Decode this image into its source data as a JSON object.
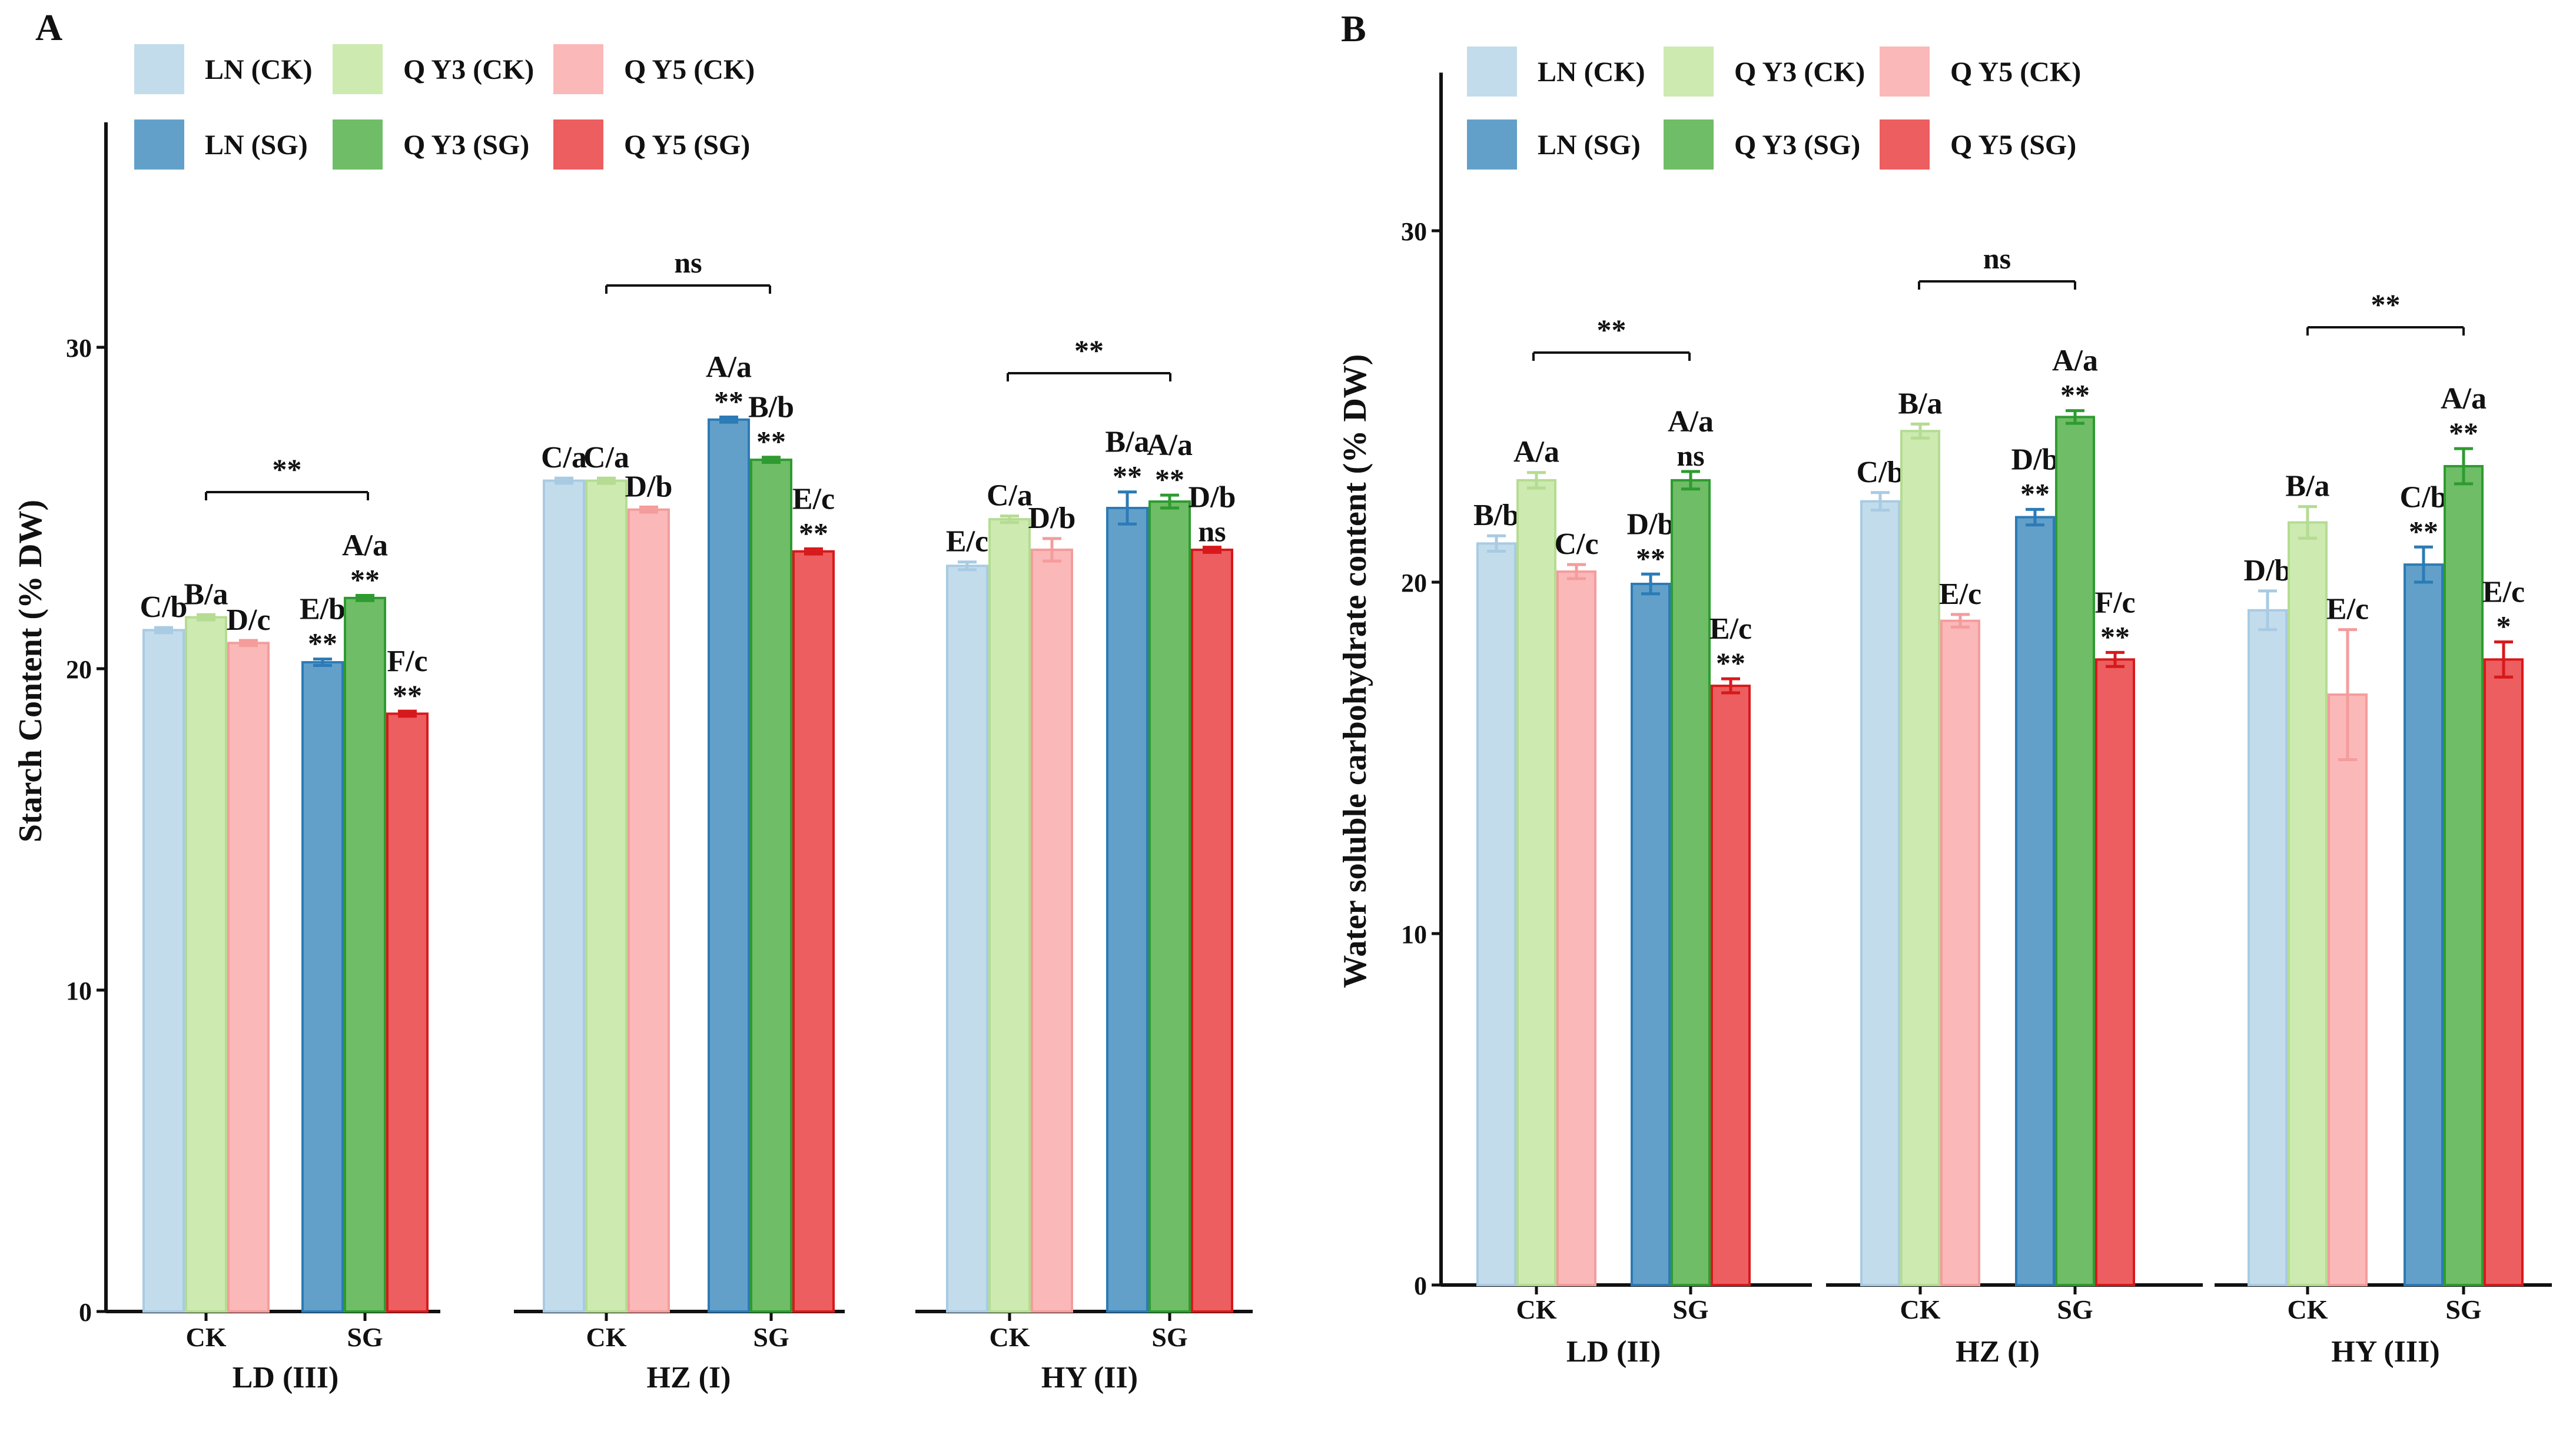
{
  "colors": {
    "LN_CK": "#c3dcec",
    "QY3_CK": "#cdeab1",
    "QY5_CK": "#fbb8b8",
    "LN_SG": "#62a0ca",
    "QY3_SG": "#6fbd66",
    "QY5_SG": "#ec5e5f",
    "LN_CK_edge": "#a8cbe3",
    "QY3_CK_edge": "#b5dc92",
    "QY5_CK_edge": "#f49c9c",
    "LN_SG_edge": "#2c7bb6",
    "QY3_SG_edge": "#2e9b30",
    "QY5_SG_edge": "#d7191c"
  },
  "chart_data": [
    {
      "type": "bar",
      "panel_label": "A",
      "ylabel": "Starch Content (% DW)",
      "ylim": [
        0,
        37
      ],
      "yticks": [
        0,
        10,
        20,
        30
      ],
      "legend": [
        "LN (CK)",
        "Q Y3 (CK)",
        "Q Y5 (CK)",
        "LN (SG)",
        "Q Y3 (SG)",
        "Q Y5 (SG)"
      ],
      "legend_position": "top-left",
      "series_keys": [
        "LN_CK",
        "QY3_CK",
        "QY5_CK",
        "LN_SG",
        "QY3_SG",
        "QY5_SG"
      ],
      "groups": [
        {
          "name": "LD (III)",
          "categories": [
            "CK",
            "SG"
          ],
          "bracket": "**",
          "values": [
            21.2,
            21.6,
            20.8,
            20.2,
            22.2,
            18.6
          ],
          "errors": [
            0.08,
            0.08,
            0.08,
            0.1,
            0.08,
            0.08
          ],
          "letters": [
            "C/b",
            "B/a",
            "D/c",
            "E/b",
            "A/a",
            "F/c"
          ],
          "sig": [
            "",
            "",
            "",
            "**",
            "**",
            "**"
          ]
        },
        {
          "name": "HZ (I)",
          "categories": [
            "CK",
            "SG"
          ],
          "bracket": "ns",
          "values": [
            25.85,
            25.85,
            24.95,
            27.75,
            26.5,
            23.65
          ],
          "errors": [
            0.08,
            0.08,
            0.08,
            0.08,
            0.08,
            0.08
          ],
          "letters": [
            "C/a",
            "C/a",
            "D/b",
            "A/a",
            "B/b",
            "E/c"
          ],
          "sig": [
            "",
            "",
            "",
            "**",
            "**",
            "**"
          ]
        },
        {
          "name": "HY (II)",
          "categories": [
            "CK",
            "SG"
          ],
          "bracket": "**",
          "values": [
            23.2,
            24.65,
            23.7,
            25.0,
            25.2,
            23.7
          ],
          "errors": [
            0.12,
            0.1,
            0.35,
            0.5,
            0.2,
            0.08
          ],
          "letters": [
            "E/c",
            "C/a",
            "D/b",
            "B/a",
            "A/a",
            "D/b"
          ],
          "sig": [
            "",
            "",
            "",
            "**",
            "**",
            "ns"
          ]
        }
      ]
    },
    {
      "type": "bar",
      "panel_label": "B",
      "ylabel": "Water soluble carbohydrate content (% DW)",
      "ylim": [
        0,
        34.5
      ],
      "yticks": [
        0,
        10,
        20,
        30
      ],
      "legend": [
        "LN (CK)",
        "Q Y3 (CK)",
        "Q Y5 (CK)",
        "LN (SG)",
        "Q Y3 (SG)",
        "Q Y5 (SG)"
      ],
      "legend_position": "top-left",
      "series_keys": [
        "LN_CK",
        "QY3_CK",
        "QY5_CK",
        "LN_SG",
        "QY3_SG",
        "QY5_SG"
      ],
      "groups": [
        {
          "name": "LD (II)",
          "categories": [
            "CK",
            "SG"
          ],
          "bracket": "**",
          "values": [
            21.1,
            22.9,
            20.3,
            19.95,
            22.9,
            17.05
          ],
          "errors": [
            0.22,
            0.22,
            0.2,
            0.28,
            0.25,
            0.2
          ],
          "letters": [
            "B/b",
            "A/a",
            "C/c",
            "D/b",
            "A/a",
            "E/c"
          ],
          "sig": [
            "",
            "",
            "",
            "**",
            "ns",
            "**"
          ]
        },
        {
          "name": "HZ (I)",
          "categories": [
            "CK",
            "SG"
          ],
          "bracket": "ns",
          "values": [
            22.3,
            24.3,
            18.9,
            21.85,
            24.7,
            17.8
          ],
          "errors": [
            0.25,
            0.2,
            0.18,
            0.22,
            0.18,
            0.2
          ],
          "letters": [
            "C/b",
            "B/a",
            "E/c",
            "D/b",
            "A/a",
            "F/c"
          ],
          "sig": [
            "",
            "",
            "",
            "**",
            "**",
            "**"
          ]
        },
        {
          "name": "HY (III)",
          "categories": [
            "CK",
            "SG"
          ],
          "bracket": "**",
          "values": [
            19.2,
            21.7,
            16.8,
            20.5,
            23.3,
            17.8
          ],
          "errors": [
            0.55,
            0.45,
            1.85,
            0.5,
            0.5,
            0.5
          ],
          "letters": [
            "D/b",
            "B/a",
            "E/c",
            "C/b",
            "A/a",
            "E/c"
          ],
          "sig": [
            "",
            "",
            "",
            "**",
            "**",
            "*"
          ]
        }
      ]
    }
  ]
}
